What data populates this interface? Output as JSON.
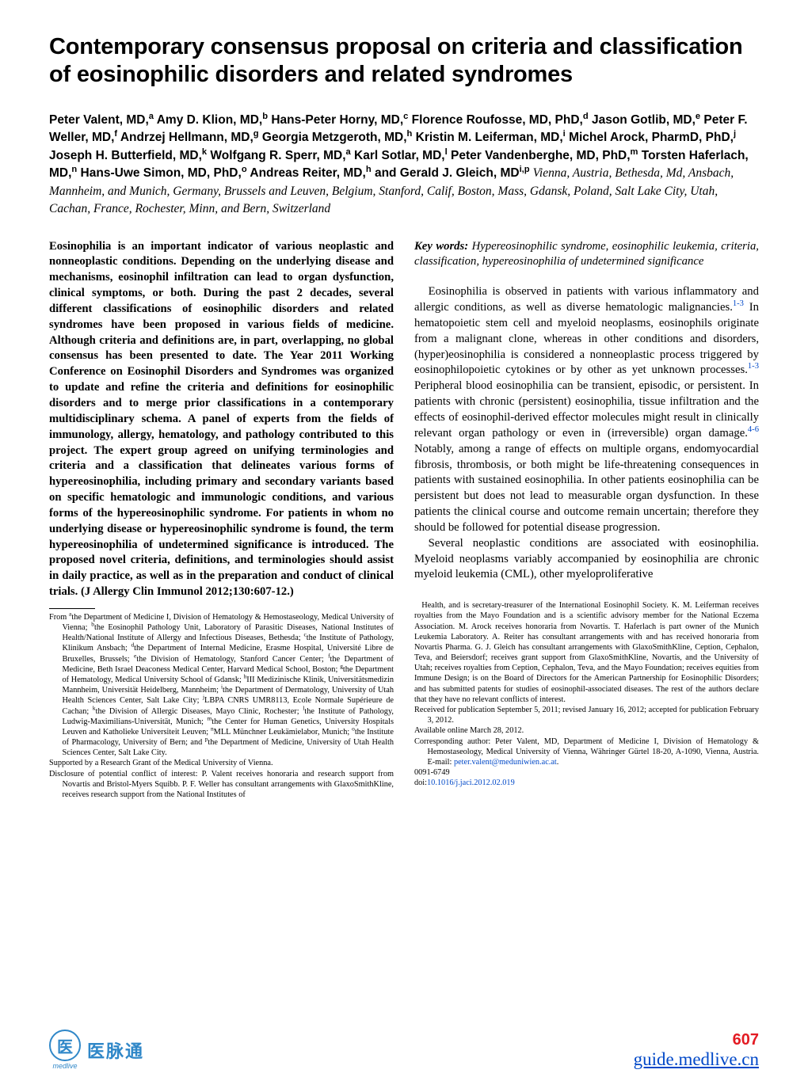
{
  "title": "Contemporary consensus proposal on criteria and classification of eosinophilic disorders and related syndromes",
  "authors_html": "Peter Valent, MD,<sup>a</sup> Amy D. Klion, MD,<sup>b</sup> Hans-Peter Horny, MD,<sup>c</sup> Florence Roufosse, MD, PhD,<sup>d</sup> Jason Gotlib, MD,<sup>e</sup> Peter F. Weller, MD,<sup>f</sup> Andrzej Hellmann, MD,<sup>g</sup> Georgia Metzgeroth, MD,<sup>h</sup> Kristin M. Leiferman, MD,<sup>i</sup> Michel Arock, PharmD, PhD,<sup>j</sup> Joseph H. Butterfield, MD,<sup>k</sup> Wolfgang R. Sperr, MD,<sup>a</sup> Karl Sotlar, MD,<sup>l</sup> Peter Vandenberghe, MD, PhD,<sup>m</sup> Torsten Haferlach, MD,<sup>n</sup> Hans-Uwe Simon, MD, PhD,<sup>o</sup> Andreas Reiter, MD,<sup>h</sup> and Gerald J. Gleich, MD<sup>i,p</sup>",
  "locations": "   Vienna, Austria, Bethesda, Md, Ansbach, Mannheim, and Munich, Germany, Brussels and Leuven, Belgium, Stanford, Calif, Boston, Mass, Gdansk, Poland, Salt Lake City, Utah, Cachan, France, Rochester, Minn, and Bern, Switzerland",
  "abstract": "Eosinophilia is an important indicator of various neoplastic and nonneoplastic conditions. Depending on the underlying disease and mechanisms, eosinophil infiltration can lead to organ dysfunction, clinical symptoms, or both. During the past 2 decades, several different classifications of eosinophilic disorders and related syndromes have been proposed in various fields of medicine. Although criteria and definitions are, in part, overlapping, no global consensus has been presented to date. The Year 2011 Working Conference on Eosinophil Disorders and Syndromes was organized to update and refine the criteria and definitions for eosinophilic disorders and to merge prior classifications in a contemporary multidisciplinary schema. A panel of experts from the fields of immunology, allergy, hematology, and pathology contributed to this project. The expert group agreed on unifying terminologies and criteria and a classification that delineates various forms of hypereosinophilia, including primary and secondary variants based on specific hematologic and immunologic conditions, and various forms of the hypereosinophilic syndrome. For patients in whom no underlying disease or hypereosinophilic syndrome is found, the term hypereosinophilia of undetermined significance is introduced. The proposed novel criteria, definitions, and terminologies should assist in daily practice, as well as in the preparation and conduct of clinical trials. (J Allergy Clin Immunol 2012;130:607-12.)",
  "keywords_label": "Key words:",
  "keywords_body": " Hypereosinophilic syndrome, eosinophilic leukemia, criteria, classification, hypereosinophilia of undetermined significance",
  "para1_pre": "Eosinophilia is observed in patients with various inflammatory and allergic conditions, as well as diverse hematologic malignancies.",
  "ref1": "1-3",
  "para1_mid": " In hematopoietic stem cell and myeloid neoplasms, eosinophils originate from a malignant clone, whereas in other conditions and disorders, (hyper)eosinophilia is considered a nonneoplastic process triggered by eosinophilopoietic cytokines or by other as yet unknown processes.",
  "ref2": "1-3",
  "para1_mid2": " Peripheral blood eosinophilia can be transient, episodic, or persistent. In patients with chronic (persistent) eosinophilia, tissue infiltration and the effects of eosinophil-derived effector molecules might result in clinically relevant organ pathology or even in (irreversible) organ damage.",
  "ref3": "4-6",
  "para1_post": " Notably, among a range of effects on multiple organs, endomyocardial fibrosis, thrombosis, or both might be life-threatening consequences in patients with sustained eosinophilia. In other patients eosinophilia can be persistent but does not lead to measurable organ dysfunction. In these patients the clinical course and outcome remain uncertain; therefore they should be followed for potential disease progression.",
  "para2": "Several neoplastic conditions are associated with eosinophilia. Myeloid neoplasms variably accompanied by eosinophilia are chronic myeloid leukemia (CML), other myeloproliferative",
  "foot_left_from": "From <sup>a</sup>the Department of Medicine I, Division of Hematology & Hemostaseology, Medical University of Vienna; <sup>b</sup>the Eosinophil Pathology Unit, Laboratory of Parasitic Diseases, National Institutes of Health/National Institute of Allergy and Infectious Diseases, Bethesda; <sup>c</sup>the Institute of Pathology, Klinikum Ansbach; <sup>d</sup>the Department of Internal Medicine, Erasme Hospital, Université Libre de Bruxelles, Brussels; <sup>e</sup>the Division of Hematology, Stanford Cancer Center; <sup>f</sup>the Department of Medicine, Beth Israel Deaconess Medical Center, Harvard Medical School, Boston; <sup>g</sup>the Department of Hematology, Medical University School of Gdansk; <sup>h</sup>III Medizinische Klinik, Universitätsmedizin Mannheim, Universität Heidelberg, Mannheim; <sup>i</sup>the Department of Dermatology, University of Utah Health Sciences Center, Salt Lake City; <sup>j</sup>LBPA CNRS UMR8113, Ecole Normale Supérieure de Cachan; <sup>k</sup>the Division of Allergic Diseases, Mayo Clinic, Rochester; <sup>l</sup>the Institute of Pathology, Ludwig-Maximilians-Universität, Munich; <sup>m</sup>the Center for Human Genetics, University Hospitals Leuven and Katholieke Universiteit Leuven; <sup>n</sup>MLL Münchner Leukämielabor, Munich; <sup>o</sup>the Institute of Pharmacology, University of Bern; and <sup>p</sup>the Department of Medicine, University of Utah Health Sciences Center, Salt Lake City.",
  "foot_left_support": "Supported by a Research Grant of the Medical University of Vienna.",
  "foot_left_disclosure": "Disclosure of potential conflict of interest: P. Valent receives honoraria and research support from Novartis and Bristol-Myers Squibb. P. F. Weller has consultant arrangements with GlaxoSmithKline, receives research support from the National Institutes of",
  "foot_right_cont": "Health, and is secretary-treasurer of the International Eosinophil Society. K. M. Leiferman receives royalties from the Mayo Foundation and is a scientific advisory member for the National Eczema Association. M. Arock receives honoraria from Novartis. T. Haferlach is part owner of the Munich Leukemia Laboratory. A. Reiter has consultant arrangements with and has received honoraria from Novartis Pharma. G. J. Gleich has consultant arrangements with GlaxoSmithKline, Ception, Cephalon, Teva, and Beiersdorf; receives grant support from GlaxoSmithKline, Novartis, and the University of Utah; receives royalties from Ception, Cephalon, Teva, and the Mayo Foundation; receives equities from Immune Design; is on the Board of Directors for the American Partnership for Eosinophilic Disorders; and has submitted patents for studies of eosinophil-associated diseases. The rest of the authors declare that they have no relevant conflicts of interest.",
  "foot_right_received": "Received for publication September 5, 2011; revised January 16, 2012; accepted for publication February 3, 2012.",
  "foot_right_available": "Available online March 28, 2012.",
  "foot_right_corresponding_pre": "Corresponding author: Peter Valent, MD, Department of Medicine I, Division of Hematology & Hemostaseology, Medical University of Vienna, Währinger Gürtel 18-20, A-1090, Vienna, Austria. E-mail: ",
  "foot_right_email": "peter.valent@meduniwien.ac.at",
  "foot_right_issn": "0091-6749",
  "foot_right_doi_pre": "doi:",
  "foot_right_doi": "10.1016/j.jaci.2012.02.019",
  "page_number": "607",
  "guide_url": "guide.medlive.cn",
  "logo_main": "医",
  "logo_label": "医脉通",
  "logo_sub": "medlive"
}
